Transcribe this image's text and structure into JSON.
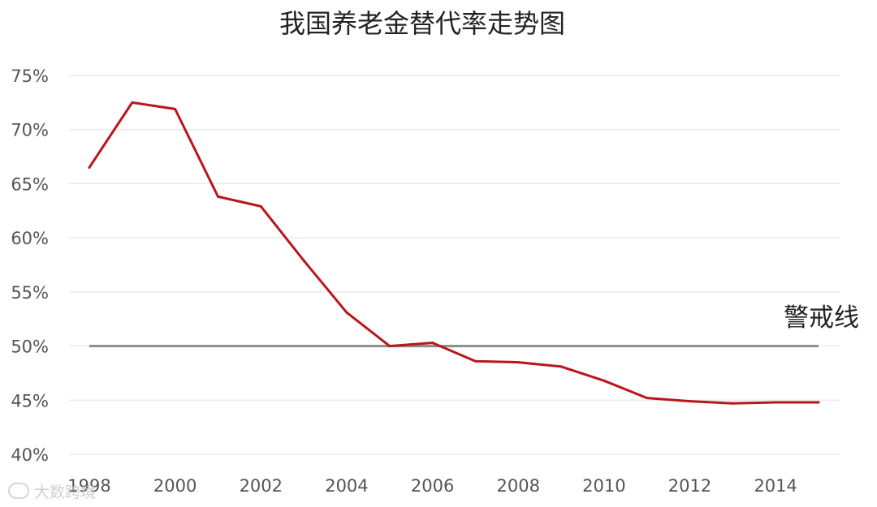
{
  "chart_data": {
    "type": "line",
    "title": "我国养老金替代率走势图",
    "xlabel": "",
    "ylabel": "",
    "x": [
      1998,
      1999,
      2000,
      2001,
      2002,
      2003,
      2004,
      2005,
      2006,
      2007,
      2008,
      2009,
      2010,
      2011,
      2012,
      2013,
      2014,
      2015
    ],
    "series": [
      {
        "values": [
          66.5,
          72.5,
          71.9,
          63.8,
          62.9,
          57.9,
          53.1,
          50.0,
          50.3,
          48.6,
          48.5,
          48.1,
          46.8,
          45.2,
          44.9,
          44.7,
          44.8,
          44.8
        ],
        "color": "#b8161d"
      }
    ],
    "reference_line": {
      "value": 50,
      "label": "警戒线",
      "color": "#8c8c8c"
    },
    "x_ticks": [
      "1998",
      "2000",
      "2002",
      "2004",
      "2006",
      "2008",
      "2010",
      "2012",
      "2014"
    ],
    "y_ticks": [
      "40%",
      "45%",
      "50%",
      "55%",
      "60%",
      "65%",
      "70%",
      "75%"
    ],
    "y_tick_values": [
      40,
      45,
      50,
      55,
      60,
      65,
      70,
      75
    ],
    "ylim": [
      40,
      75
    ],
    "xlim": [
      1998,
      2015
    ],
    "grid": true,
    "legend": "none"
  },
  "watermark": {
    "text": "大数跨境",
    "icon": "watermark-logo-icon"
  }
}
